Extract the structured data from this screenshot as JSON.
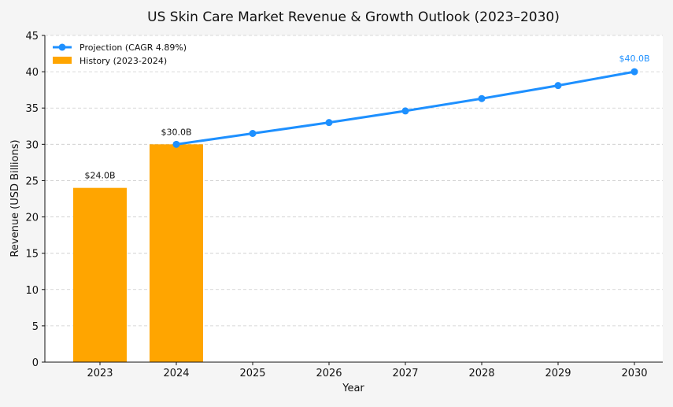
{
  "chart_data": {
    "type": "bar+line",
    "title": "US Skin Care Market Revenue & Growth Outlook (2023–2030)",
    "xlabel": "Year",
    "ylabel": "Revenue (USD Billions)",
    "ylim": [
      0,
      45
    ],
    "yticks": [
      0,
      5,
      10,
      15,
      20,
      25,
      30,
      35,
      40,
      45
    ],
    "categories": [
      "2023",
      "2024",
      "2025",
      "2026",
      "2027",
      "2028",
      "2029",
      "2030"
    ],
    "grid": "horizontal dashed",
    "legend_position": "top-left",
    "bars": {
      "name": "History (2023-2024)",
      "x": [
        "2023",
        "2024"
      ],
      "values": [
        24.0,
        30.0
      ],
      "labels": [
        "$24.0B",
        "$30.0B"
      ],
      "color": "#FFA500"
    },
    "line": {
      "name": "Projection (CAGR 4.89%)",
      "x": [
        "2024",
        "2025",
        "2026",
        "2027",
        "2028",
        "2029",
        "2030"
      ],
      "values": [
        30.0,
        31.5,
        33.0,
        34.6,
        36.3,
        38.1,
        40.0
      ],
      "end_label": "$40.0B",
      "color": "#1E90FF"
    }
  }
}
